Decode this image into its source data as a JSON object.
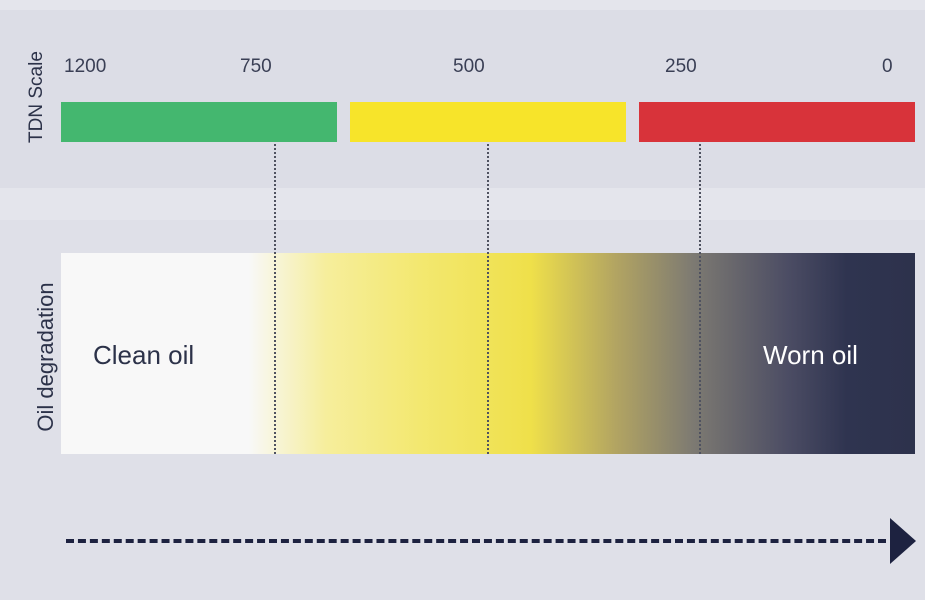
{
  "tdn_scale": {
    "label": "TDN Scale",
    "ticks": [
      "1200",
      "750",
      "500",
      "250",
      "0"
    ],
    "segments": [
      {
        "name": "green",
        "color": "#44b76f"
      },
      {
        "name": "yellow",
        "color": "#f7e42a"
      },
      {
        "name": "red",
        "color": "#d8333a"
      }
    ]
  },
  "oil_degradation": {
    "label": "Oil degradation",
    "start_label": "Clean oil",
    "end_label": "Worn oil",
    "gradient_colors": [
      "#f8f8f8",
      "#efe04a",
      "#2d324c"
    ]
  },
  "arrow": {
    "color": "#1d2240",
    "icon": "arrow-right-icon"
  }
}
